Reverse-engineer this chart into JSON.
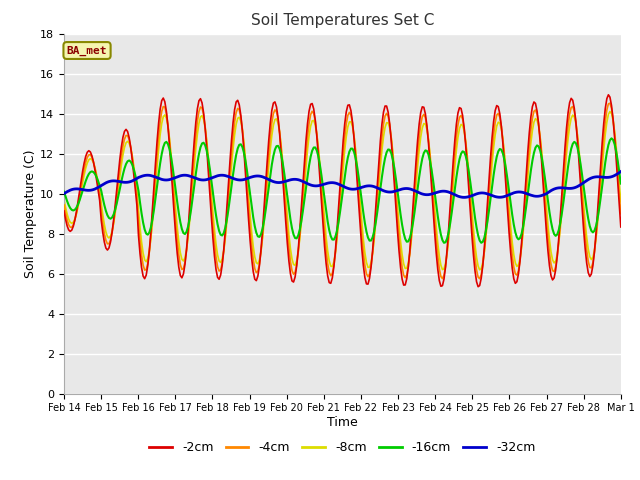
{
  "title": "Soil Temperatures Set C",
  "xlabel": "Time",
  "ylabel": "Soil Temperature (C)",
  "ylim": [
    0,
    18
  ],
  "annotation": "BA_met",
  "legend_labels": [
    "-2cm",
    "-4cm",
    "-8cm",
    "-16cm",
    "-32cm"
  ],
  "legend_colors": [
    "#dd0000",
    "#ff8800",
    "#dddd00",
    "#00cc00",
    "#0000cc"
  ],
  "tick_dates": [
    "Feb 14",
    "Feb 15",
    "Feb 16",
    "Feb 17",
    "Feb 18",
    "Feb 19",
    "Feb 20",
    "Feb 21",
    "Feb 22",
    "Feb 23",
    "Feb 24",
    "Feb 25",
    "Feb 26",
    "Feb 27",
    "Feb 28",
    "Mar 1"
  ],
  "bg_color": "#e8e8e8"
}
